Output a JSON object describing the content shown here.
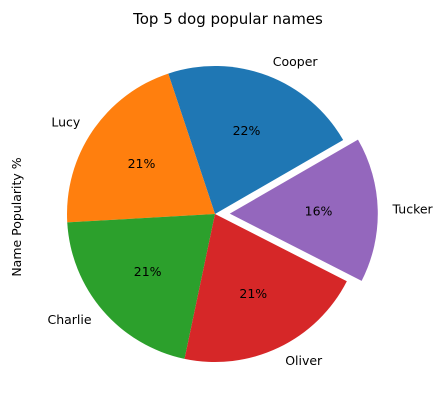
{
  "chart_data": {
    "type": "pie",
    "title": "Top 5 dog popular names",
    "ylabel": "Name Popularity %",
    "categories": [
      "Cooper",
      "Lucy",
      "Charlie",
      "Oliver",
      "Tucker"
    ],
    "values": [
      22,
      21,
      21,
      21,
      16
    ],
    "pct_labels": [
      "22%",
      "21%",
      "21%",
      "21%",
      "16%"
    ],
    "colors": [
      "#1f77b4",
      "#ff7f0e",
      "#2ca02c",
      "#d62728",
      "#9467bd"
    ],
    "explode": [
      0,
      0,
      0,
      0,
      0.1
    ],
    "start_angle_deg": 30,
    "counterclock": true,
    "legend": "none"
  }
}
